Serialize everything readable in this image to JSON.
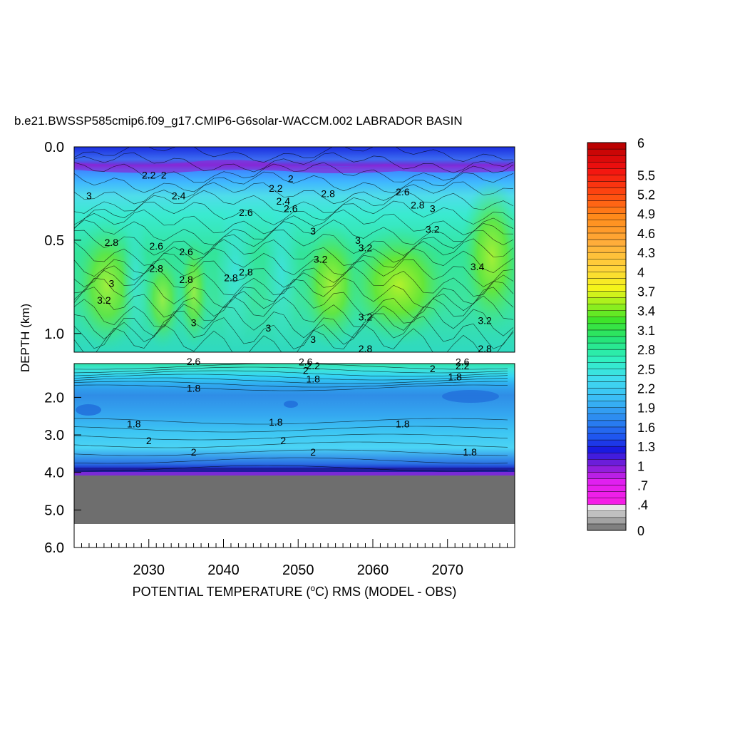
{
  "chart_data": {
    "type": "heatmap",
    "title": "b.e21.BWSSP585cmip6.f09_g17.CMIP6-G6solar-WACCM.002 LABRADOR BASIN",
    "xlabel": "POTENTIAL TEMPERATURE (",
    "xlabel_sup": "o",
    "xlabel_rest": "C) RMS (MODEL - OBS)",
    "ylabel": "DEPTH (km)",
    "x_ticks": [
      "2030",
      "2040",
      "2050",
      "2060",
      "2070"
    ],
    "x_tick_values": [
      2030,
      2040,
      2050,
      2060,
      2070
    ],
    "xlim": [
      2020,
      2079
    ],
    "upper_panel_ticks": [
      "0.0",
      "0.5",
      "1.0"
    ],
    "upper_panel_tick_values": [
      0.0,
      0.5,
      1.0
    ],
    "upper_panel_ylim": [
      0.0,
      1.1
    ],
    "lower_panel_ticks": [
      "2.0",
      "3.0",
      "4.0",
      "5.0",
      "6.0"
    ],
    "lower_panel_tick_values": [
      2.0,
      3.0,
      4.0,
      5.0,
      6.0
    ],
    "lower_panel_ylim": [
      1.1,
      6.0
    ],
    "colorbar_labels": [
      "6",
      "5.5",
      "5.2",
      "4.9",
      "4.6",
      "4.3",
      "4",
      "3.7",
      "3.4",
      "3.1",
      "2.8",
      "2.5",
      "2.2",
      "1.9",
      "1.6",
      "1.3",
      "1",
      ".7",
      ".4",
      "0"
    ],
    "colorbar_label_values": [
      6,
      5.5,
      5.2,
      4.9,
      4.6,
      4.3,
      4.0,
      3.7,
      3.4,
      3.1,
      2.8,
      2.5,
      2.2,
      1.9,
      1.6,
      1.3,
      1.0,
      0.7,
      0.4,
      0
    ],
    "colorbar_range": [
      0,
      6
    ],
    "contour_labels": [
      {
        "text": "3",
        "x": 2022,
        "depth": 0.28
      },
      {
        "text": "2.2",
        "x": 2030,
        "depth": 0.17
      },
      {
        "text": "2",
        "x": 2032,
        "depth": 0.17
      },
      {
        "text": "2.4",
        "x": 2034,
        "depth": 0.28
      },
      {
        "text": "2.8",
        "x": 2025,
        "depth": 0.53
      },
      {
        "text": "2.6",
        "x": 2031,
        "depth": 0.55
      },
      {
        "text": "2.8",
        "x": 2031,
        "depth": 0.67
      },
      {
        "text": "2.6",
        "x": 2035,
        "depth": 0.58
      },
      {
        "text": "2.8",
        "x": 2035,
        "depth": 0.73
      },
      {
        "text": "3",
        "x": 2025,
        "depth": 0.75
      },
      {
        "text": "3.2",
        "x": 2024,
        "depth": 0.84
      },
      {
        "text": "3",
        "x": 2036,
        "depth": 0.96
      },
      {
        "text": "2.8",
        "x": 2041,
        "depth": 0.72
      },
      {
        "text": "2.6",
        "x": 2043,
        "depth": 0.37
      },
      {
        "text": "2.2",
        "x": 2047,
        "depth": 0.24
      },
      {
        "text": "2",
        "x": 2049,
        "depth": 0.19
      },
      {
        "text": "2.4",
        "x": 2048,
        "depth": 0.31
      },
      {
        "text": "2.6",
        "x": 2049,
        "depth": 0.35
      },
      {
        "text": "2.8",
        "x": 2043,
        "depth": 0.69
      },
      {
        "text": "3",
        "x": 2046,
        "depth": 0.99
      },
      {
        "text": "2.8",
        "x": 2054,
        "depth": 0.27
      },
      {
        "text": "3",
        "x": 2052,
        "depth": 0.47
      },
      {
        "text": "3.2",
        "x": 2053,
        "depth": 0.62
      },
      {
        "text": "3",
        "x": 2052,
        "depth": 1.05
      },
      {
        "text": "3",
        "x": 2058,
        "depth": 0.52
      },
      {
        "text": "3.2",
        "x": 2059,
        "depth": 0.56
      },
      {
        "text": "3.2",
        "x": 2059,
        "depth": 0.93
      },
      {
        "text": "2.6",
        "x": 2064,
        "depth": 0.26
      },
      {
        "text": "2.8",
        "x": 2066,
        "depth": 0.33
      },
      {
        "text": "3",
        "x": 2068,
        "depth": 0.35
      },
      {
        "text": "3.2",
        "x": 2068,
        "depth": 0.46
      },
      {
        "text": "3.4",
        "x": 2074,
        "depth": 0.66
      },
      {
        "text": "3.2",
        "x": 2075,
        "depth": 0.95
      },
      {
        "text": "2.6",
        "x": 2036,
        "depth": 1.14
      },
      {
        "text": "1.8",
        "x": 2036,
        "depth": 1.85
      },
      {
        "text": "2.6",
        "x": 2051,
        "depth": 1.15
      },
      {
        "text": "2.2",
        "x": 2052,
        "depth": 1.25
      },
      {
        "text": "2",
        "x": 2051,
        "depth": 1.38
      },
      {
        "text": "1.8",
        "x": 2052,
        "depth": 1.6
      },
      {
        "text": "2.8",
        "x": 2059,
        "depth": 1.1
      },
      {
        "text": "2.6",
        "x": 2072,
        "depth": 1.15
      },
      {
        "text": "2.2",
        "x": 2072,
        "depth": 1.25
      },
      {
        "text": "2",
        "x": 2068,
        "depth": 1.33
      },
      {
        "text": "1.8",
        "x": 2071,
        "depth": 1.55
      },
      {
        "text": "2.8",
        "x": 2075,
        "depth": 1.1
      },
      {
        "text": "1.8",
        "x": 2028,
        "depth": 2.8
      },
      {
        "text": "1.8",
        "x": 2047,
        "depth": 2.75
      },
      {
        "text": "1.8",
        "x": 2064,
        "depth": 2.8
      },
      {
        "text": "2",
        "x": 2030,
        "depth": 3.25
      },
      {
        "text": "2",
        "x": 2036,
        "depth": 3.55
      },
      {
        "text": "2",
        "x": 2048,
        "depth": 3.25
      },
      {
        "text": "2",
        "x": 2052,
        "depth": 3.55
      },
      {
        "text": "1.8",
        "x": 2073,
        "depth": 3.55
      }
    ]
  },
  "colors": {
    "land": "#6e6e6e",
    "background": "#ffffff"
  }
}
